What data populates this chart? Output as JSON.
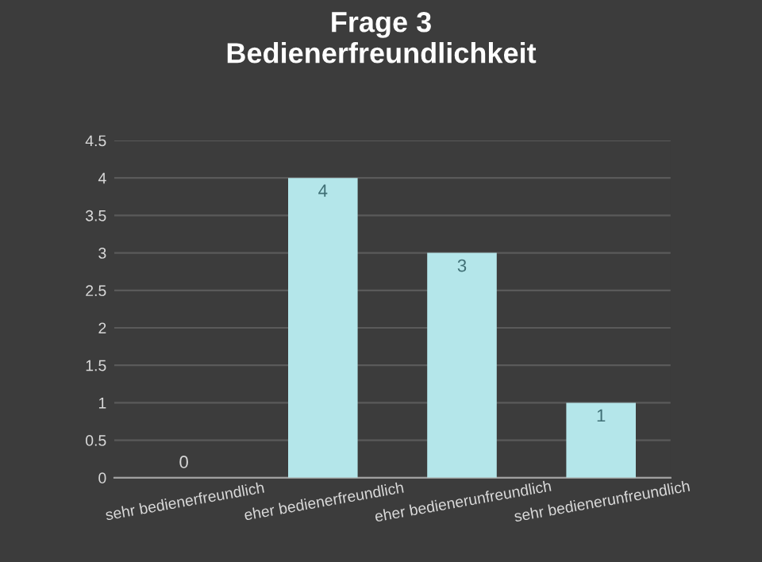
{
  "chart_data": {
    "type": "bar",
    "title": "Frage 3\nBedienerfreundlichkeit",
    "categories": [
      "sehr bedienerfreundlich",
      "eher bedienerfreundlich",
      "eher bedienerunfreundlich",
      "sehr bedienerunfreundlich"
    ],
    "values": [
      0,
      4,
      3,
      1
    ],
    "color": "#b4e6ea",
    "ylim": [
      0,
      4.5
    ],
    "yticks": [
      0,
      0.5,
      1,
      1.5,
      2,
      2.5,
      3,
      3.5,
      4,
      4.5
    ],
    "grid": "y",
    "data_labels": true
  }
}
